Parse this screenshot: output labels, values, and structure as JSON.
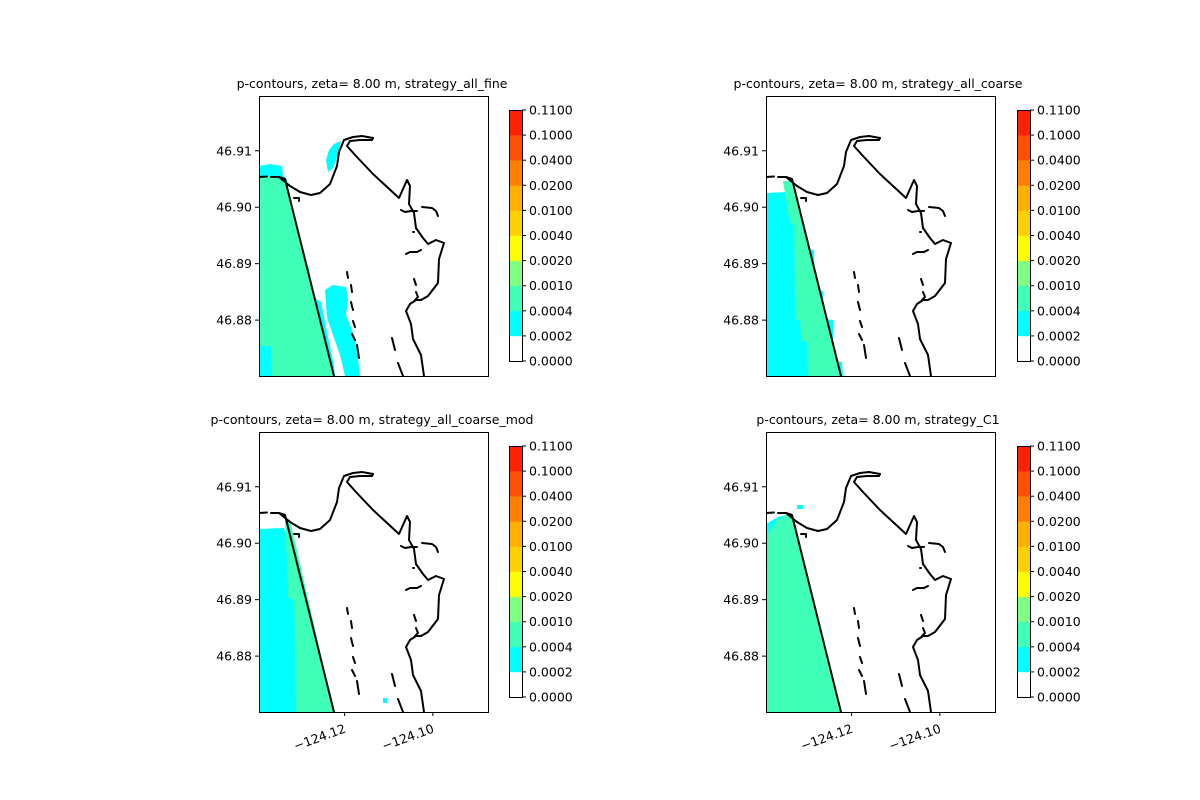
{
  "chart_data": [
    {
      "type": "heatmap",
      "title": "p-contours, zeta= 8.00 m, strategy_all_fine",
      "ytick_labels": [
        "46.91",
        "46.90",
        "46.89",
        "46.88"
      ],
      "yticks": [
        46.91,
        46.9,
        46.89,
        46.88
      ],
      "xtick_labels": [],
      "xticks": [],
      "xlim": [
        -124.1394,
        -124.0875
      ],
      "ylim": [
        46.8701,
        46.9197
      ],
      "colorbar_levels": [
        "0.0000",
        "0.0002",
        "0.0004",
        "0.0010",
        "0.0020",
        "0.0040",
        "0.0100",
        "0.0200",
        "0.0400",
        "0.1000",
        "0.1100"
      ],
      "colors": {
        "lvl0": "#ffffff",
        "lvl1": "#00ffff",
        "lvl2": "#40ffb8",
        "lvl3": "#80ff80"
      }
    },
    {
      "type": "heatmap",
      "title": "p-contours, zeta= 8.00 m, strategy_all_coarse",
      "ytick_labels": [
        "46.91",
        "46.90",
        "46.89",
        "46.88"
      ],
      "yticks": [
        46.91,
        46.9,
        46.89,
        46.88
      ],
      "xtick_labels": [],
      "xticks": [],
      "xlim": [
        -124.1394,
        -124.0875
      ],
      "ylim": [
        46.8701,
        46.9197
      ],
      "colorbar_levels": [
        "0.0000",
        "0.0002",
        "0.0004",
        "0.0010",
        "0.0020",
        "0.0040",
        "0.0100",
        "0.0200",
        "0.0400",
        "0.1000",
        "0.1100"
      ],
      "colors": {
        "lvl0": "#ffffff",
        "lvl1": "#00ffff",
        "lvl2": "#40ffb8",
        "lvl3": "#80ff80"
      }
    },
    {
      "type": "heatmap",
      "title": "p-contours, zeta= 8.00 m, strategy_all_coarse_mod",
      "ytick_labels": [
        "46.91",
        "46.90",
        "46.89",
        "46.88"
      ],
      "yticks": [
        46.91,
        46.9,
        46.89,
        46.88
      ],
      "xtick_labels": [
        "−124.12",
        "−124.10"
      ],
      "xticks": [
        -124.12,
        -124.1
      ],
      "xlim": [
        -124.1394,
        -124.0875
      ],
      "ylim": [
        46.8701,
        46.9197
      ],
      "colorbar_levels": [
        "0.0000",
        "0.0002",
        "0.0004",
        "0.0010",
        "0.0020",
        "0.0040",
        "0.0100",
        "0.0200",
        "0.0400",
        "0.1000",
        "0.1100"
      ],
      "colors": {
        "lvl0": "#ffffff",
        "lvl1": "#00ffff",
        "lvl2": "#40ffb8",
        "lvl3": "#80ff80"
      }
    },
    {
      "type": "heatmap",
      "title": "p-contours, zeta= 8.00 m, strategy_C1",
      "ytick_labels": [
        "46.91",
        "46.90",
        "46.89",
        "46.88"
      ],
      "yticks": [
        46.91,
        46.9,
        46.89,
        46.88
      ],
      "xtick_labels": [
        "−124.12",
        "−124.10"
      ],
      "xticks": [
        -124.12,
        -124.1
      ],
      "xlim": [
        -124.1394,
        -124.0875
      ],
      "ylim": [
        46.8701,
        46.9197
      ],
      "colorbar_levels": [
        "0.0000",
        "0.0002",
        "0.0004",
        "0.0010",
        "0.0020",
        "0.0040",
        "0.0100",
        "0.0200",
        "0.0400",
        "0.1000",
        "0.1100"
      ],
      "colors": {
        "lvl0": "#ffffff",
        "lvl1": "#00ffff",
        "lvl2": "#40ffb8",
        "lvl3": "#80ff80"
      }
    }
  ],
  "colorbar_colors": [
    "#ffffff",
    "#00ffff",
    "#40ffb8",
    "#80ff80",
    "#ffff00",
    "#ffd000",
    "#ffb000",
    "#ff8000",
    "#ff5000",
    "#ff2000",
    "#ff0000"
  ]
}
